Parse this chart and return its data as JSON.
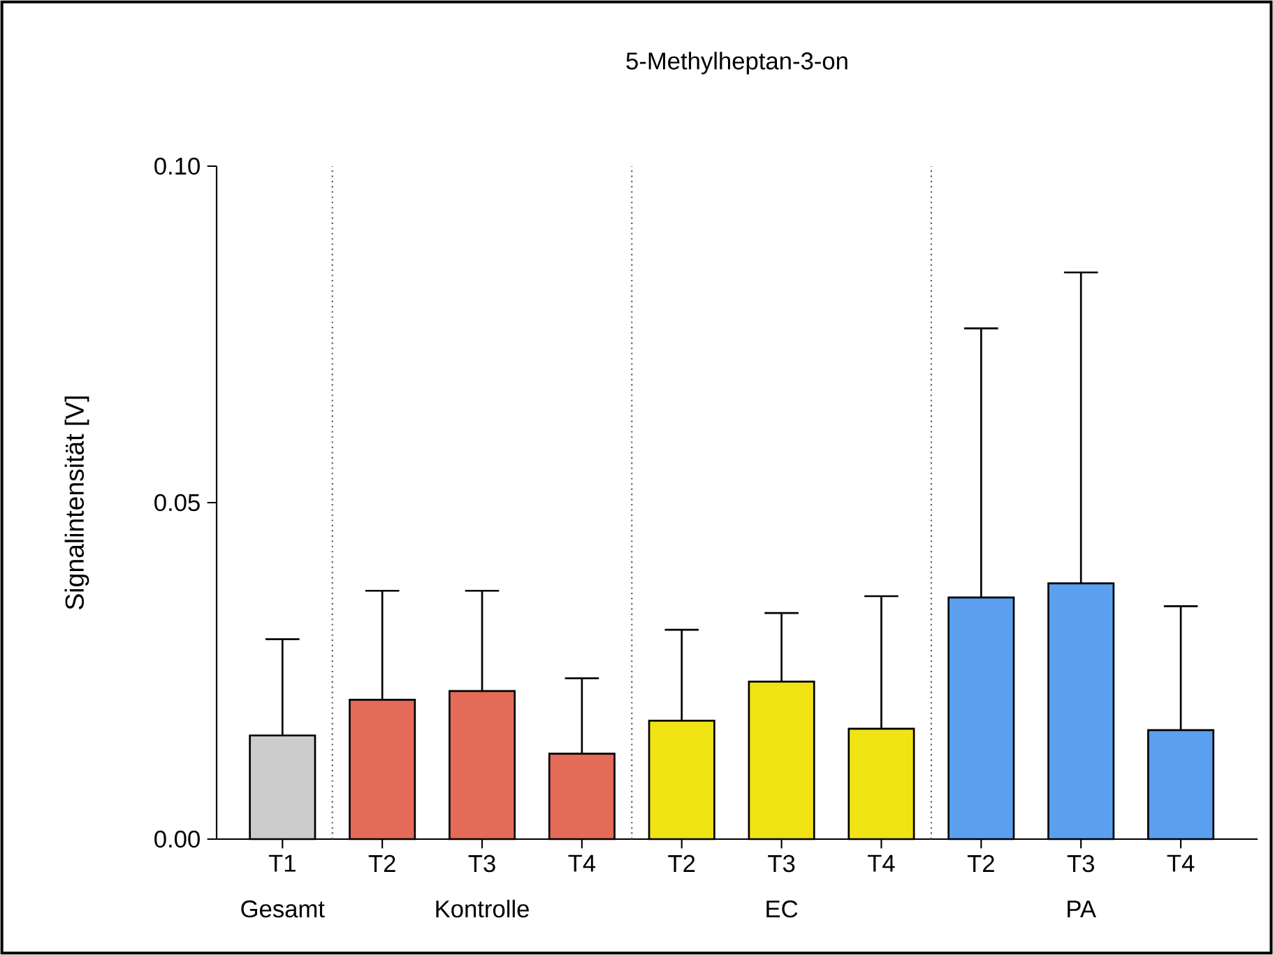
{
  "chart_data": {
    "type": "bar",
    "title": "5-Methylheptan-3-on",
    "ylabel": "Signalintensität [V]",
    "categories": [
      "T1",
      "T2",
      "T3",
      "T4",
      "T2",
      "T3",
      "T4",
      "T2",
      "T3",
      "T4"
    ],
    "values": [
      0.0154,
      0.0207,
      0.022,
      0.0127,
      0.0176,
      0.0234,
      0.0164,
      0.0359,
      0.038,
      0.0162
    ],
    "errors": [
      [
        0.0154,
        0.0297
      ],
      [
        0.0207,
        0.0369
      ],
      [
        0.022,
        0.0369
      ],
      [
        0.0127,
        0.0239
      ],
      [
        0.0176,
        0.0311
      ],
      [
        0.0234,
        0.0336
      ],
      [
        0.0164,
        0.0361
      ],
      [
        0.0359,
        0.0759
      ],
      [
        0.038,
        0.0842
      ],
      [
        0.0162,
        0.0346
      ]
    ],
    "colors": [
      "#cccccc",
      "#e36b57",
      "#e36b57",
      "#e36b57",
      "#f0e314",
      "#f0e314",
      "#f0e314",
      "#5ba0ef",
      "#5ba0ef",
      "#5ba0ef"
    ],
    "annotations": [
      "Gesamt",
      "Kontrolle",
      "EC",
      "PA"
    ],
    "ylim": [
      0,
      0.1
    ],
    "yticks": [
      {
        "value": 0,
        "label": "0.00"
      },
      {
        "value": 0.05,
        "label": "0.05"
      },
      {
        "value": 0.1,
        "label": "0.10"
      }
    ],
    "grid": false
  }
}
